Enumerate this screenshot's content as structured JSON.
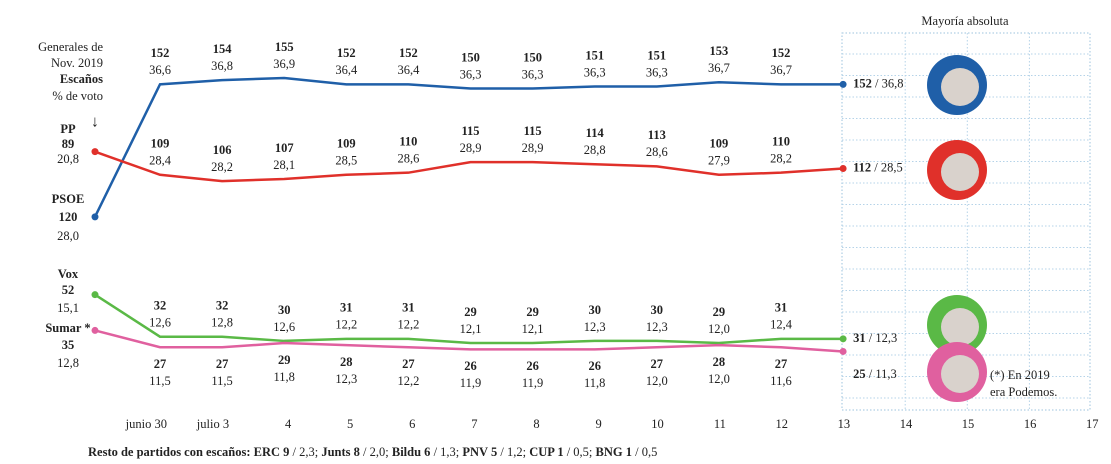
{
  "chart_data": {
    "type": "line",
    "intro": [
      "Generales de",
      "Nov. 2019"
    ],
    "seats_label": "Escaños",
    "vote_label": "% de voto",
    "arrow": "↓",
    "annotation": "Mayoría absoluta",
    "footnote": [
      "(*) En 2019",
      "era Podemos."
    ],
    "final_separator": " / ",
    "categories": [
      null,
      "junio 30",
      "julio 3",
      "4",
      "5",
      "6",
      "7",
      "8",
      "9",
      "10",
      "11",
      "12",
      "13",
      "14",
      "15",
      "16",
      "17"
    ],
    "ylim": [
      10,
      165
    ],
    "series": [
      {
        "name": "PP",
        "color": "#1f5fa8",
        "values": [
          89,
          152,
          154,
          155,
          152,
          152,
          150,
          150,
          151,
          151,
          153,
          152,
          152,
          null,
          null,
          null,
          null
        ],
        "vote_labels": [
          "20,8",
          "36,6",
          "36,8",
          "36,9",
          "36,4",
          "36,4",
          "36,3",
          "36,3",
          "36,3",
          "36,3",
          "36,7",
          "36,7",
          "36,8",
          null,
          null,
          null,
          null
        ]
      },
      {
        "name": "PSOE",
        "color": "#e0302a",
        "values": [
          120,
          109,
          106,
          107,
          109,
          110,
          115,
          115,
          114,
          113,
          109,
          110,
          112,
          null,
          null,
          null,
          null
        ],
        "vote_labels": [
          "28,0",
          "28,4",
          "28,2",
          "28,1",
          "28,5",
          "28,6",
          "28,9",
          "28,9",
          "28,8",
          "28,6",
          "27,9",
          "28,2",
          "28,5",
          null,
          null,
          null,
          null
        ]
      },
      {
        "name": "Vox",
        "color": "#5ab946",
        "values": [
          52,
          32,
          32,
          30,
          31,
          31,
          29,
          29,
          30,
          30,
          29,
          31,
          31,
          null,
          null,
          null,
          null
        ],
        "vote_labels": [
          "15,1",
          "12,6",
          "12,8",
          "12,6",
          "12,2",
          "12,2",
          "12,1",
          "12,1",
          "12,3",
          "12,3",
          "12,0",
          "12,4",
          "12,3",
          null,
          null,
          null,
          null
        ]
      },
      {
        "name": "Sumar *",
        "color": "#e0609f",
        "values": [
          35,
          27,
          27,
          29,
          28,
          27,
          26,
          26,
          26,
          27,
          28,
          27,
          25,
          null,
          null,
          null,
          null
        ],
        "vote_labels": [
          "12,8",
          "11,5",
          "11,5",
          "11,8",
          "12,3",
          "12,2",
          "11,9",
          "11,9",
          "11,8",
          "12,0",
          "12,0",
          "11,6",
          "11,3",
          null,
          null,
          null,
          null
        ]
      }
    ],
    "footer": [
      {
        "text": "Resto de partidos con escaños: ",
        "bold": true
      },
      {
        "text": "ERC 9",
        "bold": true
      },
      {
        "text": " / 2,3; ",
        "bold": false
      },
      {
        "text": "Junts 8",
        "bold": true
      },
      {
        "text": " / 2,0; ",
        "bold": false
      },
      {
        "text": "Bildu 6",
        "bold": true
      },
      {
        "text": " / 1,3; ",
        "bold": false
      },
      {
        "text": "PNV 5",
        "bold": true
      },
      {
        "text": " / 1,2; ",
        "bold": false
      },
      {
        "text": "CUP 1",
        "bold": true
      },
      {
        "text": " / 0,5; ",
        "bold": false
      },
      {
        "text": "BNG 1",
        "bold": true
      },
      {
        "text": " / 0,5",
        "bold": false
      }
    ]
  }
}
